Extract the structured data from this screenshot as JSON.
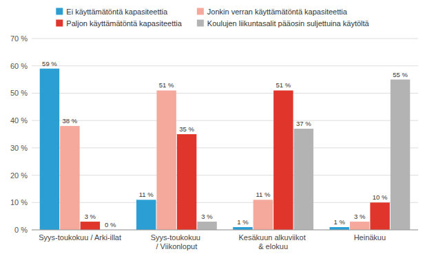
{
  "chart_data": {
    "type": "bar",
    "categories": [
      "Syys-toukokuu / Arki-illat",
      "Syys-toukokuu / Viikonloput",
      "Kesäkuun alkuviikot & elokuu",
      "Heinäkuu"
    ],
    "series": [
      {
        "name": "Ei käyttämätöntä kapasiteettia",
        "color": "#2b9fd4",
        "values": [
          59,
          11,
          1,
          1
        ],
        "value_labels": [
          "59 %",
          "11 %",
          "1 %",
          "1 %"
        ]
      },
      {
        "name": "Jonkin verran käyttämätöntä kapasiteettia",
        "color": "#f5a89c",
        "values": [
          38,
          51,
          11,
          3
        ],
        "value_labels": [
          "38 %",
          "51 %",
          "11 %",
          "3 %"
        ]
      },
      {
        "name": "Paljon käyttämätöntä kapasiteettia",
        "color": "#e0352a",
        "values": [
          3,
          35,
          51,
          10
        ],
        "value_labels": [
          "3 %",
          "35 %",
          "51 %",
          "10 %"
        ]
      },
      {
        "name": "Koulujen liikuntasalit pääosin suljettuina käytöltä",
        "color": "#b3b3b3",
        "values": [
          0,
          3,
          37,
          55
        ],
        "value_labels": [
          "0 %",
          "3 %",
          "37 %",
          "55 %"
        ]
      }
    ],
    "ylim": [
      0,
      70
    ],
    "yticks": [
      {
        "value": 0,
        "label": "0 %"
      },
      {
        "value": 10,
        "label": "10 %"
      },
      {
        "value": 20,
        "label": "20 %"
      },
      {
        "value": 30,
        "label": "30 %"
      },
      {
        "value": 40,
        "label": "40 %"
      },
      {
        "value": 50,
        "label": "50 %"
      },
      {
        "value": 60,
        "label": "60 %"
      },
      {
        "value": 70,
        "label": "70 %"
      }
    ],
    "grid": true,
    "legend": "top",
    "data_labels": true
  }
}
